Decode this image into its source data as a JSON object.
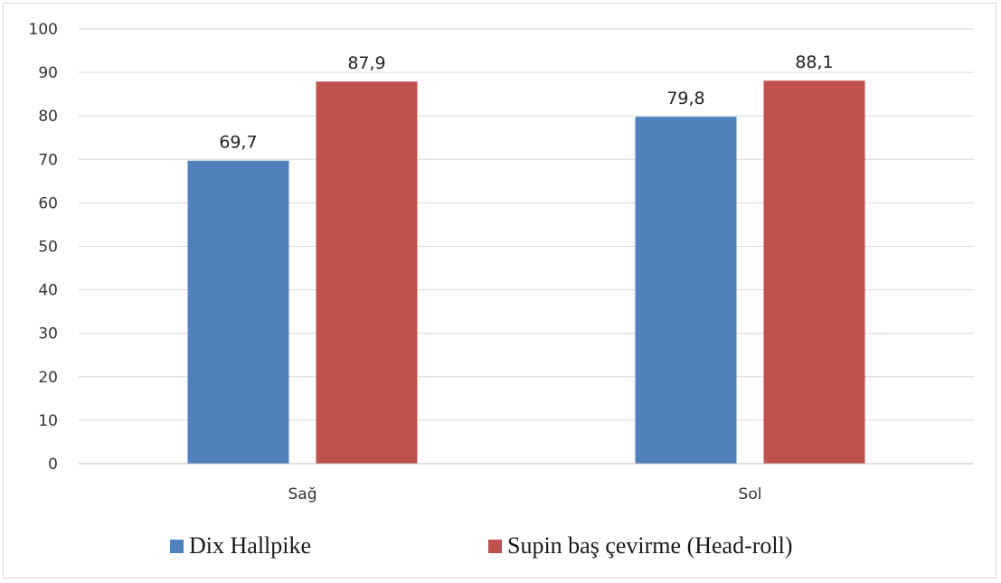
{
  "chart_data": {
    "type": "bar",
    "categories": [
      "Sağ",
      "Sol"
    ],
    "series": [
      {
        "name": "Dix Hallpike",
        "values": [
          69.7,
          79.8
        ],
        "labels": [
          "69,7",
          "79,8"
        ],
        "color": "#4f81bd"
      },
      {
        "name": "Supin baş çevirme (Head-roll)",
        "values": [
          87.9,
          88.1
        ],
        "labels": [
          "87,9",
          "88,1"
        ],
        "color": "#c0504d"
      }
    ],
    "ylim": [
      0,
      100
    ],
    "yticks": [
      0,
      10,
      20,
      30,
      40,
      50,
      60,
      70,
      80,
      90,
      100
    ],
    "grid": true,
    "legend_position": "bottom"
  }
}
